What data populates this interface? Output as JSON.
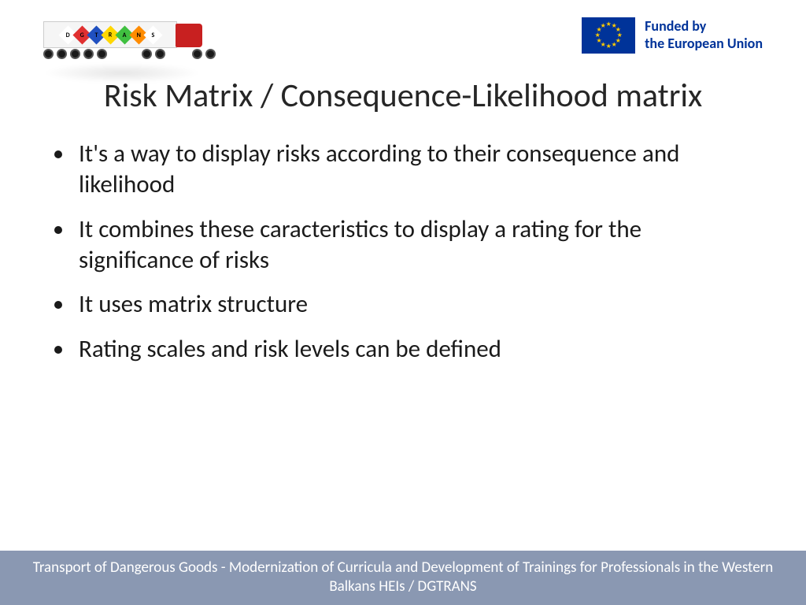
{
  "header": {
    "truck_placards": [
      {
        "letter": "D",
        "bg": "#ffffff"
      },
      {
        "letter": "G",
        "bg": "#e03030"
      },
      {
        "letter": "T",
        "bg": "#2050c0"
      },
      {
        "letter": "R",
        "bg": "#ffd700"
      },
      {
        "letter": "A",
        "bg": "#40c040"
      },
      {
        "letter": "N",
        "bg": "#ff8c00"
      },
      {
        "letter": "S",
        "bg": "#ffffff"
      }
    ],
    "eu_text_line1": "Funded by",
    "eu_text_line2": "the European Union"
  },
  "title": "Risk Matrix / Consequence-Likelihood matrix",
  "bullets": [
    "It's a way to display risks according to their consequence and likelihood",
    "It combines these caracteristics to display a rating for the significance of risks",
    "It uses matrix structure",
    "Rating scales and risk levels can be defined"
  ],
  "footer": "Transport of Dangerous Goods - Modernization of Curricula and Development of Trainings for Professionals in the Western Balkans HEIs / DGTRANS",
  "colors": {
    "footer_bg": "#8a98b2",
    "eu_blue": "#003399",
    "eu_gold": "#ffcc00"
  }
}
